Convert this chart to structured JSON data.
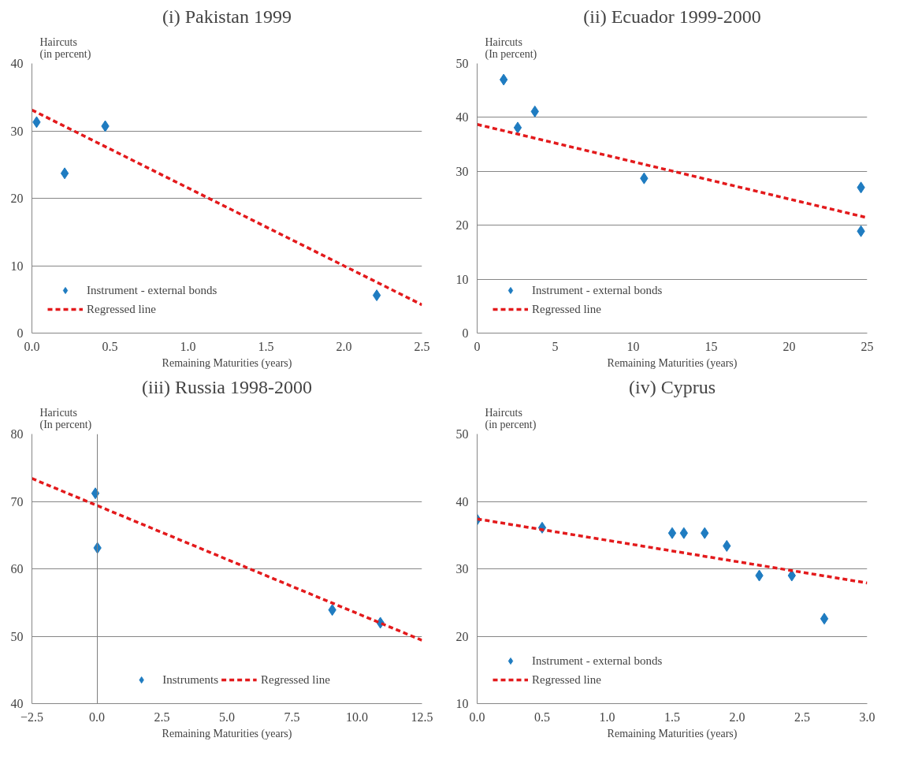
{
  "chart_data": [
    {
      "type": "scatter",
      "title": "(i) Pakistan 1999",
      "ylabel": "Haircuts\n(in percent)",
      "xlabel": "Remaining Maturities (years)",
      "xlim": [
        0,
        2.5
      ],
      "xticks": [
        {
          "value": 0,
          "label": "0.0"
        },
        0.5,
        {
          "value": 1,
          "label": "1.0"
        },
        1.5,
        {
          "value": 2,
          "label": "2.0"
        },
        2.5
      ],
      "ylim": [
        0,
        40
      ],
      "yticks": [
        0,
        10,
        20,
        30,
        40
      ],
      "grid": "y",
      "legend": "bottom left",
      "series": [
        {
          "name": "Instrument - external bonds",
          "marker": "diamond",
          "color": "#1f7cc1",
          "x": [
            0.03,
            0.21,
            0.47,
            2.21
          ],
          "values": [
            31.3,
            23.7,
            30.7,
            5.6
          ]
        },
        {
          "name": "Regressed line",
          "type": "line",
          "line_style": "dashed",
          "color": "#e31a1c",
          "x": [
            0,
            2.5
          ],
          "values": [
            33.1,
            4.2
          ]
        }
      ]
    },
    {
      "type": "scatter",
      "title": "(ii) Ecuador 1999-2000",
      "ylabel": "Haircuts\n(In percent)",
      "xlabel": "Remaining Maturities (years)",
      "xlim": [
        0,
        25
      ],
      "xticks": [
        0,
        5,
        10,
        15,
        20,
        25
      ],
      "ylim": [
        0,
        50
      ],
      "yticks": [
        0,
        10,
        20,
        30,
        40,
        50
      ],
      "grid": "y",
      "legend": "bottom left",
      "series": [
        {
          "name": "Instrument - external bonds",
          "marker": "diamond",
          "color": "#1f7cc1",
          "x": [
            1.7,
            2.6,
            3.7,
            10.7,
            24.6,
            24.6
          ],
          "values": [
            47.0,
            38.1,
            41.1,
            28.7,
            27.0,
            18.9
          ]
        },
        {
          "name": "Regressed line",
          "type": "line",
          "line_style": "dashed",
          "color": "#e31a1c",
          "x": [
            0,
            25
          ],
          "values": [
            38.7,
            21.4
          ]
        }
      ]
    },
    {
      "type": "scatter",
      "title": "(iii) Russia 1998-2000",
      "ylabel": "Haricuts\n(In percent)",
      "xlabel": "Remaining Maturities (years)",
      "xlim": [
        -2.5,
        12.5
      ],
      "xticks": [
        -2.5,
        {
          "value": 0,
          "label": "0.0"
        },
        2.5,
        {
          "value": 5,
          "label": "5.0"
        },
        7.5,
        {
          "value": 10,
          "label": "10.0"
        },
        12.5
      ],
      "ylim": [
        40,
        80
      ],
      "yticks": [
        40,
        50,
        60,
        70,
        80
      ],
      "grid": "y",
      "legend": "bottom",
      "series": [
        {
          "name": "Instruments",
          "marker": "diamond",
          "color": "#1f7cc1",
          "x": [
            -0.06,
            0.02,
            9.05,
            10.9
          ],
          "values": [
            71.2,
            63.1,
            53.9,
            52.0
          ]
        },
        {
          "name": "Regressed line",
          "type": "line",
          "line_style": "dashed",
          "color": "#e31a1c",
          "x": [
            -2.5,
            12.5
          ],
          "values": [
            73.4,
            49.4
          ]
        }
      ]
    },
    {
      "type": "scatter",
      "title": "(iv) Cyprus",
      "ylabel": "Haircuts\n(in percent)",
      "xlabel": "Remaining Maturities (years)",
      "xlim": [
        0,
        3
      ],
      "xticks": [
        {
          "value": 0,
          "label": "0.0"
        },
        0.5,
        {
          "value": 1,
          "label": "1.0"
        },
        1.5,
        {
          "value": 2,
          "label": "2.0"
        },
        2.5,
        {
          "value": 3,
          "label": "3.0"
        }
      ],
      "ylim": [
        10,
        50
      ],
      "yticks": [
        10,
        20,
        30,
        40,
        50
      ],
      "grid": "y",
      "legend": "bottom left",
      "series": [
        {
          "name": "Instrument - external bonds",
          "marker": "diamond",
          "color": "#1f7cc1",
          "x": [
            0,
            0.5,
            1.5,
            1.59,
            1.75,
            1.92,
            2.17,
            2.42,
            2.67
          ],
          "values": [
            37.3,
            36.1,
            35.3,
            35.3,
            35.3,
            33.4,
            29.0,
            29.0,
            22.6
          ]
        },
        {
          "name": "Regressed line",
          "type": "line",
          "line_style": "dashed",
          "color": "#e31a1c",
          "x": [
            0,
            3
          ],
          "values": [
            37.4,
            27.9
          ]
        }
      ]
    }
  ]
}
